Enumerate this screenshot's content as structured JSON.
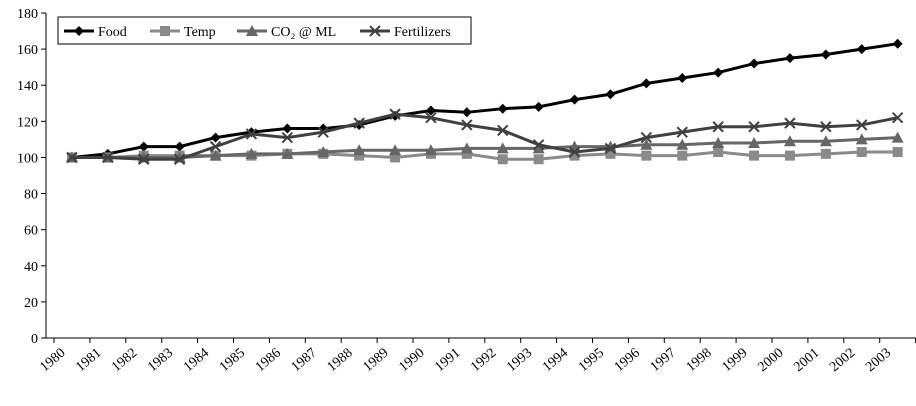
{
  "chart_data": {
    "type": "line",
    "categories": [
      "1980",
      "1981",
      "1982",
      "1983",
      "1984",
      "1985",
      "1986",
      "1987",
      "1988",
      "1989",
      "1990",
      "1991",
      "1992",
      "1993",
      "1994",
      "1995",
      "1996",
      "1997",
      "1998",
      "1999",
      "2000",
      "2001",
      "2002",
      "2003"
    ],
    "series": [
      {
        "name": "Food",
        "color": "#000000",
        "marker": "diamond",
        "values": [
          100,
          102,
          106,
          106,
          111,
          114,
          116,
          116,
          118,
          123,
          126,
          125,
          127,
          128,
          132,
          135,
          141,
          144,
          147,
          152,
          155,
          157,
          160,
          163
        ]
      },
      {
        "name": "Temp",
        "color": "#8a8a8a",
        "marker": "square",
        "values": [
          100,
          100,
          101,
          101,
          101,
          101,
          102,
          102,
          101,
          100,
          102,
          102,
          99,
          99,
          101,
          102,
          101,
          101,
          103,
          101,
          101,
          102,
          103,
          103
        ]
      },
      {
        "name": "CO₂ @ ML",
        "color": "#666666",
        "marker": "triangle",
        "values": [
          100,
          100,
          100,
          100,
          101,
          102,
          102,
          103,
          104,
          104,
          104,
          105,
          105,
          105,
          106,
          106,
          107,
          107,
          108,
          108,
          109,
          109,
          110,
          111
        ]
      },
      {
        "name": "Fertilizers",
        "color": "#404040",
        "marker": "x",
        "values": [
          100,
          100,
          99,
          99,
          106,
          113,
          111,
          114,
          119,
          124,
          122,
          118,
          115,
          107,
          103,
          105,
          111,
          114,
          117,
          117,
          119,
          117,
          118,
          122
        ]
      }
    ],
    "ylim": [
      0,
      180
    ],
    "yticks": [
      0,
      20,
      40,
      60,
      80,
      100,
      120,
      140,
      160,
      180
    ],
    "grid": false
  }
}
